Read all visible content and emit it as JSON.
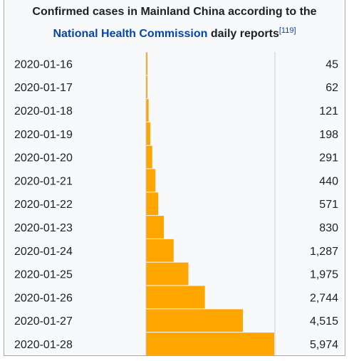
{
  "caption": {
    "line1": "Confirmed cases in Mainland China according to the",
    "link": "National Health Commission",
    "rest": " daily reports",
    "ref": "[119]"
  },
  "colors": {
    "bar": "#ffa500",
    "axis": "#c8ccd1",
    "link": "#0645ad"
  },
  "chart_data": {
    "type": "bar",
    "orientation": "horizontal",
    "categories": [
      "2020-01-16",
      "2020-01-17",
      "2020-01-18",
      "2020-01-19",
      "2020-01-20",
      "2020-01-21",
      "2020-01-22",
      "2020-01-23",
      "2020-01-24",
      "2020-01-25",
      "2020-01-26",
      "2020-01-27",
      "2020-01-28"
    ],
    "values": [
      45,
      62,
      121,
      198,
      291,
      440,
      571,
      830,
      1287,
      1975,
      2744,
      4515,
      5974
    ],
    "value_labels": [
      "45",
      "62",
      "121",
      "198",
      "291",
      "440",
      "571",
      "830",
      "1,287",
      "1,975",
      "2,744",
      "4,515",
      "5,974"
    ],
    "title": "Confirmed cases in Mainland China according to the National Health Commission daily reports[119]",
    "xlabel": "",
    "ylabel": "",
    "xlim": [
      0,
      5974
    ],
    "grid": false,
    "legend": "none"
  }
}
